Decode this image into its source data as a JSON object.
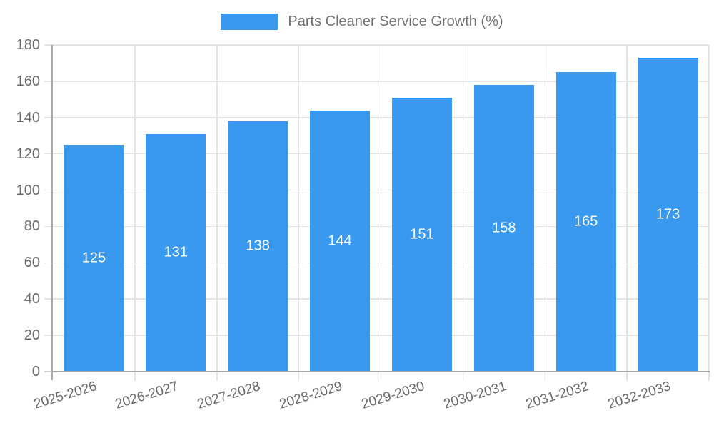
{
  "chart_data": {
    "type": "bar",
    "legend_label": "Parts Cleaner Service Growth (%)",
    "legend_position": "top",
    "categories": [
      "2025-2026",
      "2026-2027",
      "2027-2028",
      "2028-2029",
      "2029-2030",
      "2030-2031",
      "2031-2032",
      "2032-2033"
    ],
    "values": [
      125,
      131,
      138,
      144,
      151,
      158,
      165,
      173
    ],
    "value_labels_shown": true,
    "ylim": [
      0,
      180
    ],
    "ytick_step": 20,
    "grid": true,
    "x_label_rotation_deg": -17,
    "bar_color": "#3899EE",
    "value_label_color": "#ffffff",
    "axis_color": "#a8a8a8",
    "gridline_color": "#e4e4e4",
    "tick_color": "#d4d4d4",
    "label_color": "#6a6a6a"
  }
}
